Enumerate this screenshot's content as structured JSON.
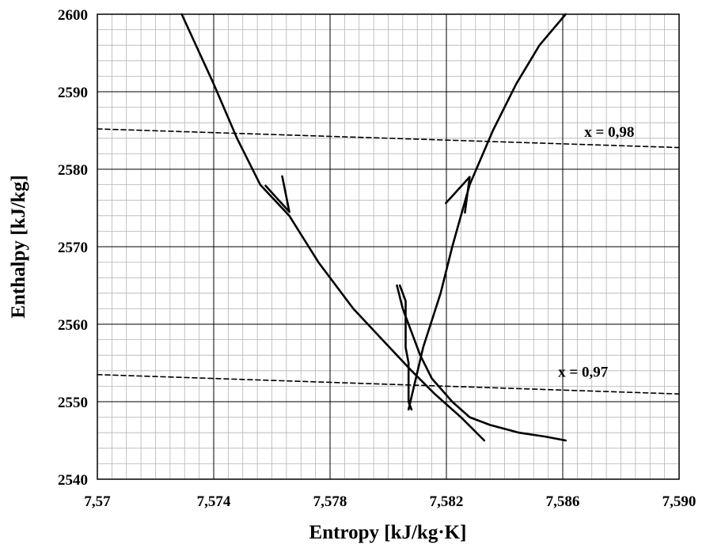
{
  "chart_data": {
    "type": "line",
    "xlabel": "Entropy [kJ/kg·K]",
    "ylabel": "Enthalpy [kJ/kg]",
    "xlim": [
      7.57,
      7.59
    ],
    "ylim": [
      2540,
      2600
    ],
    "x_ticks": [
      7.57,
      7.574,
      7.578,
      7.582,
      7.586,
      7.59
    ],
    "x_tick_labels": [
      "7,57",
      "7,574",
      "7,578",
      "7,582",
      "7,586",
      "7,590"
    ],
    "y_ticks": [
      2540,
      2550,
      2560,
      2570,
      2580,
      2590,
      2600
    ],
    "y_tick_labels": [
      "2540",
      "2550",
      "2560",
      "2570",
      "2580",
      "2590",
      "2600"
    ],
    "grid": true,
    "series": [
      {
        "style": "solid",
        "x": [
          7.5729,
          7.574,
          7.5748,
          7.5756,
          7.5766,
          7.5776,
          7.5788,
          7.5798,
          7.5808,
          7.5816,
          7.5825,
          7.5833
        ],
        "y": [
          2600,
          2591,
          2584,
          2578,
          2574,
          2568,
          2562,
          2558,
          2554,
          2551,
          2548,
          2545
        ]
      },
      {
        "style": "solid",
        "x": [
          7.5803,
          7.5805,
          7.5808,
          7.5811,
          7.5815,
          7.5822,
          7.5828,
          7.5835,
          7.5845,
          7.5854,
          7.5861
        ],
        "y": [
          2565,
          2562,
          2559,
          2556,
          2553,
          2550,
          2548,
          2547,
          2546,
          2545.5,
          2545
        ]
      },
      {
        "style": "solid",
        "x": [
          7.5804,
          7.5806,
          7.5806,
          7.5806,
          7.5807,
          7.5807,
          7.5807,
          7.5807,
          7.5808
        ],
        "y": [
          2565,
          2563,
          2560,
          2557,
          2555,
          2553,
          2551,
          2550,
          2549
        ]
      },
      {
        "style": "solid",
        "x": [
          7.5807,
          7.5812,
          7.5818,
          7.5822,
          7.5828,
          7.5836,
          7.5844,
          7.5852,
          7.5861
        ],
        "y": [
          2549,
          2557,
          2564,
          2570,
          2578,
          2585,
          2591,
          2596,
          2600
        ]
      },
      {
        "style": "dashed",
        "x": [
          7.57,
          7.59
        ],
        "y": [
          2585.2,
          2582.8
        ]
      },
      {
        "style": "dashed",
        "x": [
          7.57,
          7.59
        ],
        "y": [
          2553.5,
          2551.0
        ]
      }
    ],
    "arrows": [
      {
        "x": 7.5766,
        "y": 2574.5,
        "direction": "down"
      },
      {
        "x": 7.5828,
        "y": 2579.0,
        "direction": "up"
      }
    ],
    "annotations": [
      {
        "text": "x = 0,98",
        "x": 7.5876,
        "y": 2584.2
      },
      {
        "text": "x = 0,97",
        "x": 7.5867,
        "y": 2553.2
      }
    ]
  }
}
